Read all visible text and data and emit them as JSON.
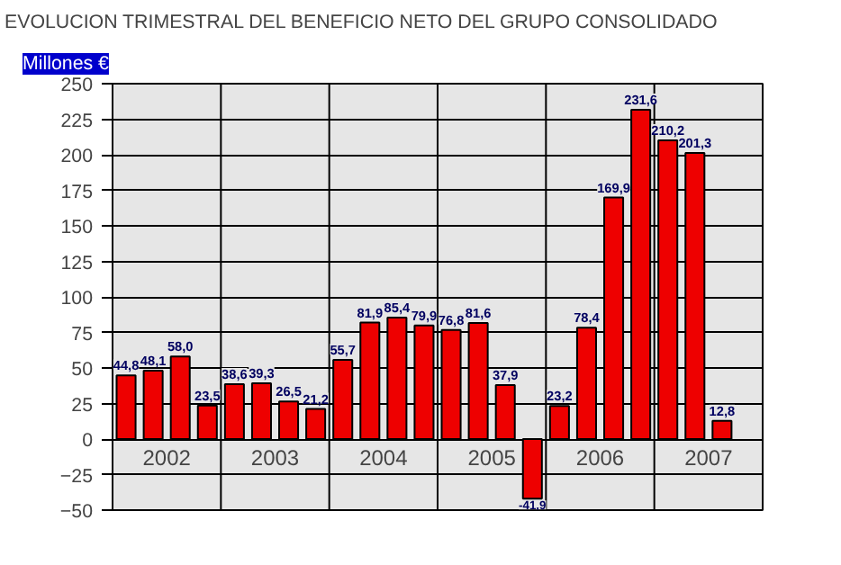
{
  "chart_data": {
    "type": "bar",
    "title": "EVOLUCION TRIMESTRAL DEL BENEFICIO NETO DEL GRUPO CONSOLIDADO",
    "ylabel": "Millones €",
    "categories": [
      null,
      null,
      null,
      null,
      null,
      null,
      null,
      null,
      null,
      null,
      null,
      null,
      null,
      null,
      null,
      null,
      null,
      null,
      null,
      null,
      null,
      null,
      null,
      null
    ],
    "values": [
      44.8,
      48.1,
      58.0,
      23.5,
      38.6,
      39.3,
      26.5,
      21.2,
      55.7,
      81.9,
      85.4,
      79.9,
      76.8,
      81.6,
      37.9,
      -41.9,
      23.2,
      78.4,
      169.9,
      231.6,
      210.2,
      201.3,
      12.8,
      null
    ],
    "value_labels": [
      "44,8",
      "48,1",
      "58,0",
      "23,5",
      "38,6",
      "39,3",
      "26,5",
      "21,2",
      "55,7",
      "81,9",
      "85,4",
      "79,9",
      "76,8",
      "81,6",
      "37,9",
      "-41,9",
      "23,2",
      "78,4",
      "169,9",
      "231,6",
      "210,2",
      "201,3",
      "12,8",
      null
    ],
    "color": "#ee0000",
    "annotations": [
      "2002",
      "2003",
      "2004",
      "2005",
      "2006",
      "2007"
    ],
    "ylim": [
      -50,
      250
    ],
    "yticks": [
      -50,
      -25,
      0,
      25,
      50,
      75,
      100,
      125,
      150,
      175,
      200,
      225,
      250
    ],
    "grid": true
  }
}
